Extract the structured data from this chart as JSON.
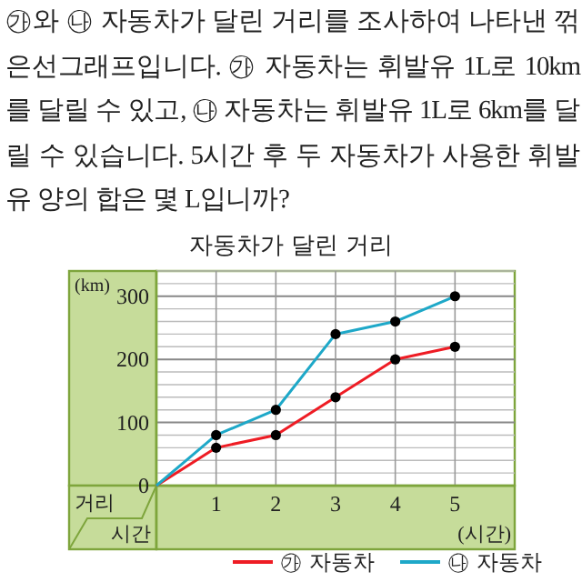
{
  "chart_data": {
    "type": "line",
    "title": "자동차가 달린 거리",
    "annotations": [
      "㉮와 ㉯ 자동차가 달린 거리를 조사하여 나타낸 꺾은선그래프입니다. ㉮ 자동차는 휘발유 1L로 10km를 달릴 수 있고, ㉯ 자동차는 휘발유 1L로 6km를 달릴 수 있습니다. 5시간 후 두 자동차가 사용한 휘발유 양의 합은 몇 L입니까?",
      "거리",
      "시간"
    ],
    "xlabel": "(시간)",
    "ylabel": "(km)",
    "x": [
      0,
      1,
      2,
      3,
      4,
      5
    ],
    "series": [
      {
        "name": "㉮ 자동차",
        "color": "#ee1c24",
        "values": [
          0,
          60,
          80,
          140,
          200,
          220
        ]
      },
      {
        "name": "㉯ 자동차",
        "color": "#1ea8c8",
        "values": [
          0,
          80,
          120,
          240,
          260,
          300
        ]
      }
    ],
    "xlim": [
      0,
      6
    ],
    "ylim": [
      0,
      340
    ],
    "xticks": [
      1,
      2,
      3,
      4,
      5
    ],
    "yticks": [
      0,
      100,
      200,
      300
    ],
    "grid": true,
    "marker": "circle",
    "legend": "bottom"
  }
}
